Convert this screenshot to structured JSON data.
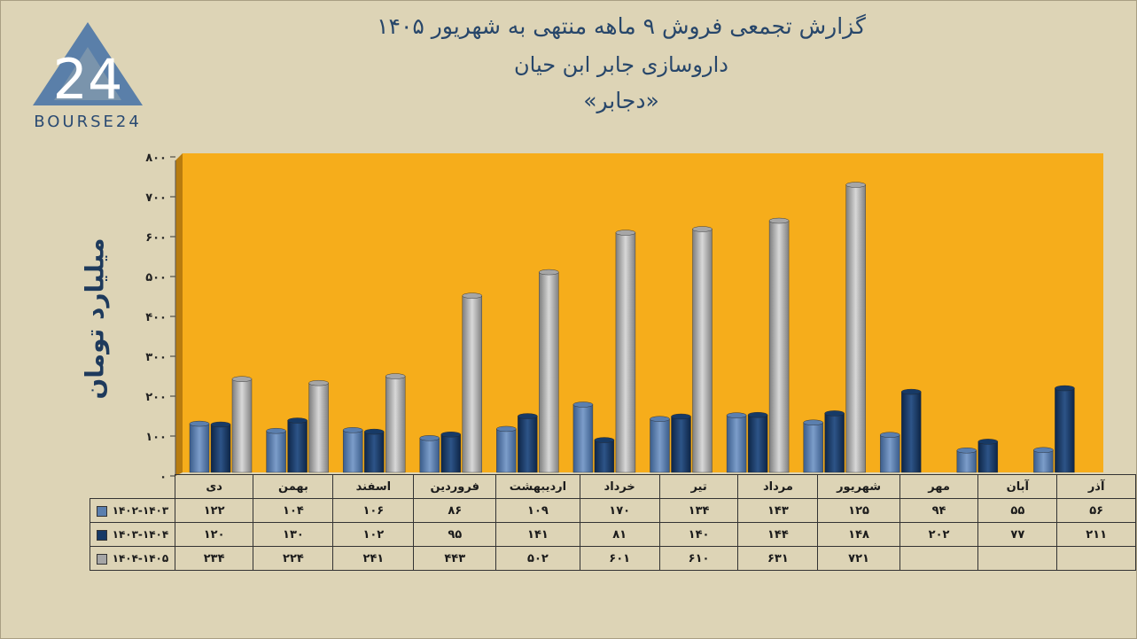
{
  "header": {
    "title_line1": "گزارش تجمعی فروش ۹ ماهه منتهی به شهریور ۱۴۰۵",
    "title_line2": "داروسازی جابر ابن حیان",
    "title_line3": "«دجابر»"
  },
  "logo": {
    "text": "BOURSE24",
    "mark": "24"
  },
  "chart_data": {
    "type": "bar",
    "ylabel": "میلیارد تومان",
    "ylim": [
      0,
      800
    ],
    "yticks": [
      "۰",
      "۱۰۰",
      "۲۰۰",
      "۳۰۰",
      "۴۰۰",
      "۵۰۰",
      "۶۰۰",
      "۷۰۰",
      "۸۰۰"
    ],
    "grid": false,
    "plot_background": "#f6ad1b",
    "categories": [
      "دی",
      "بهمن",
      "اسفند",
      "فروردین",
      "اردیبهشت",
      "خرداد",
      "تیر",
      "مرداد",
      "شهریور",
      "مهر",
      "آبان",
      "آذر"
    ],
    "series": [
      {
        "name": "۱۴۰۲-۱۴۰۳",
        "color": "#5b7fae",
        "values": [
          122,
          104,
          106,
          86,
          109,
          170,
          134,
          143,
          125,
          94,
          55,
          56
        ],
        "labels": [
          "۱۲۲",
          "۱۰۴",
          "۱۰۶",
          "۸۶",
          "۱۰۹",
          "۱۷۰",
          "۱۳۴",
          "۱۴۳",
          "۱۲۵",
          "۹۴",
          "۵۵",
          "۵۶"
        ]
      },
      {
        "name": "۱۴۰۳-۱۴۰۴",
        "color": "#173a66",
        "values": [
          120,
          130,
          102,
          95,
          141,
          81,
          140,
          144,
          148,
          202,
          77,
          211
        ],
        "labels": [
          "۱۲۰",
          "۱۳۰",
          "۱۰۲",
          "۹۵",
          "۱۴۱",
          "۸۱",
          "۱۴۰",
          "۱۴۴",
          "۱۴۸",
          "۲۰۲",
          "۷۷",
          "۲۱۱"
        ]
      },
      {
        "name": "۱۴۰۴-۱۴۰۵",
        "color": "#a6a6a6",
        "values": [
          234,
          224,
          241,
          443,
          502,
          601,
          610,
          631,
          721,
          null,
          null,
          null
        ],
        "labels": [
          "۲۳۴",
          "۲۲۴",
          "۲۴۱",
          "۴۴۳",
          "۵۰۲",
          "۶۰۱",
          "۶۱۰",
          "۶۳۱",
          "۷۲۱",
          "",
          "",
          ""
        ]
      }
    ]
  }
}
